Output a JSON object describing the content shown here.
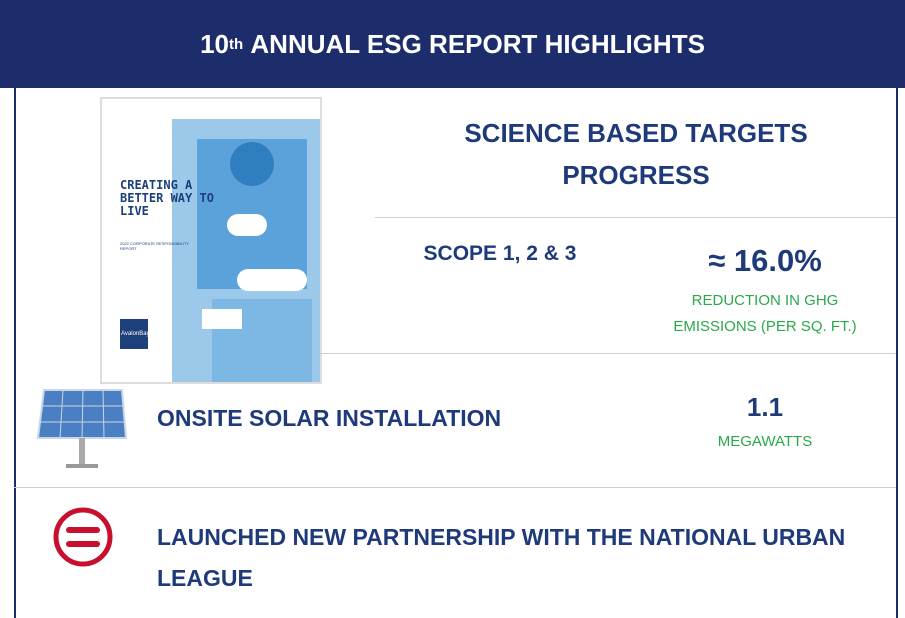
{
  "header": {
    "title_number": "10",
    "title_suffix": "th",
    "title_rest": "ANNUAL ESG REPORT HIGHLIGHTS"
  },
  "report_cover": {
    "headline": "CREATING A BETTER WAY TO LIVE",
    "subtitle": "2022 CORPORATE RESPONSIBILITY REPORT",
    "brand": "AvalonBay"
  },
  "science_targets": {
    "title": "SCIENCE BASED TARGETS PROGRESS",
    "scope": "SCOPE 1, 2 & 3",
    "value": "≈ 16.0%",
    "description": "REDUCTION IN GHG EMISSIONS (PER SQ. FT.)"
  },
  "solar": {
    "title": "ONSITE SOLAR INSTALLATION",
    "value": "1.1",
    "unit": "MEGAWATTS"
  },
  "partnership": {
    "title": "LAUNCHED NEW PARTNERSHIP WITH THE NATIONAL URBAN LEAGUE"
  }
}
